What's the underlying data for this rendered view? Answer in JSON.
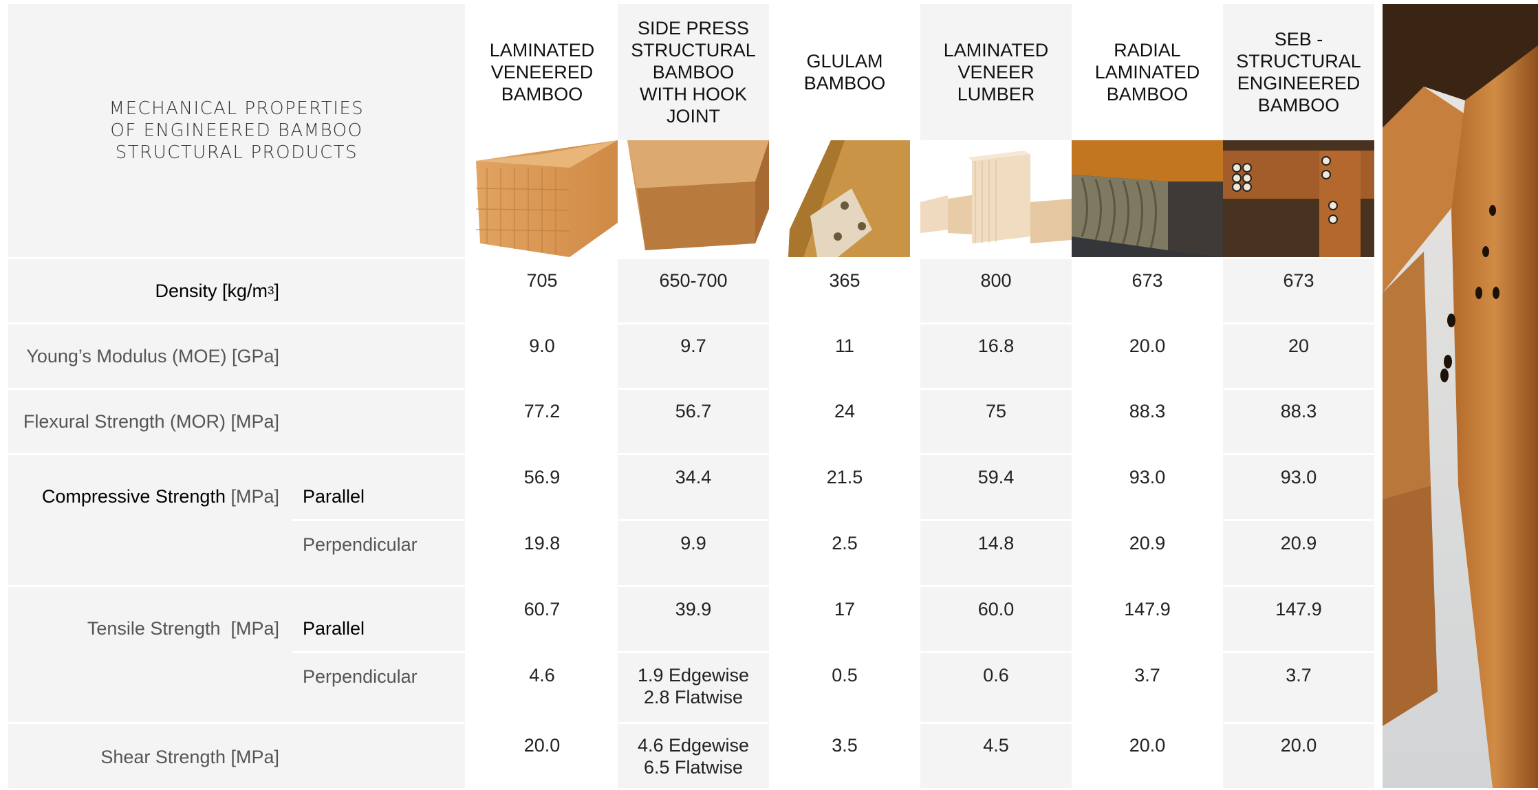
{
  "title": "MECHANICAL PROPERTIES\nOF ENGINEERED BAMBOO\nSTRUCTURAL PRODUCTS",
  "products": [
    {
      "name": "LAMINATED\nVENEERED\nBAMBOO",
      "image": "laminated-veneered-bamboo-photo"
    },
    {
      "name": "SIDE PRESS\nSTRUCTURAL\nBAMBOO\nWITH HOOK\nJOINT",
      "image": "side-press-bamboo-photo"
    },
    {
      "name": "GLULAM\nBAMBOO",
      "image": "glulam-bamboo-photo"
    },
    {
      "name": "LAMINATED\nVENEER\nLUMBER",
      "image": "laminated-veneer-lumber-photo"
    },
    {
      "name": "RADIAL\nLAMINATED\nBAMBOO",
      "image": "radial-laminated-bamboo-photo"
    },
    {
      "name": "SEB -\nSTRUCTURAL\nENGINEERED\nBAMBOO",
      "image": "seb-structural-bamboo-photo"
    }
  ],
  "properties": {
    "density": {
      "label": "Density [kg/m",
      "sup": "3",
      "label_end": " ]",
      "values": [
        "705",
        "650-700",
        "365",
        "800",
        "673",
        "673"
      ]
    },
    "moe": {
      "label": "Young’s Modulus (MOE) [GPa]",
      "values": [
        "9.0",
        "9.7",
        "11",
        "16.8",
        "20.0",
        "20"
      ]
    },
    "mor": {
      "label": "Flexural Strength (MOR) [MPa]",
      "values": [
        "77.2",
        "56.7",
        "24",
        "75",
        "88.3",
        "88.3"
      ]
    },
    "compressive": {
      "label_main": "Compressive Strength",
      "label_unit": " [MPa]",
      "parallel_label": "Parallel",
      "perpendicular_label": "Perpendicular",
      "parallel": [
        "56.9",
        "34.4",
        "21.5",
        "59.4",
        "93.0",
        "93.0"
      ],
      "perpendicular": [
        "19.8",
        "9.9",
        "2.5",
        "14.8",
        "20.9",
        "20.9"
      ]
    },
    "tensile": {
      "label": "Tensile Strength  [MPa]",
      "parallel_label": "Parallel",
      "perpendicular_label": "Perpendicular",
      "parallel": [
        "60.7",
        "39.9",
        "17",
        "60.0",
        "147.9",
        "147.9"
      ],
      "perpendicular": [
        "4.6",
        "1.9 Edgewise\n2.8 Flatwise",
        "0.5",
        "0.6",
        "3.7",
        "3.7"
      ]
    },
    "shear": {
      "label": "Shear Strength [MPa]",
      "values": [
        "20.0",
        "4.6 Edgewise\n6.5 Flatwise",
        "3.5",
        "4.5",
        "20.0",
        "20.0"
      ]
    }
  },
  "colors": {
    "bamboo": "#d89a55",
    "background_grey": "#f4f4f4"
  }
}
